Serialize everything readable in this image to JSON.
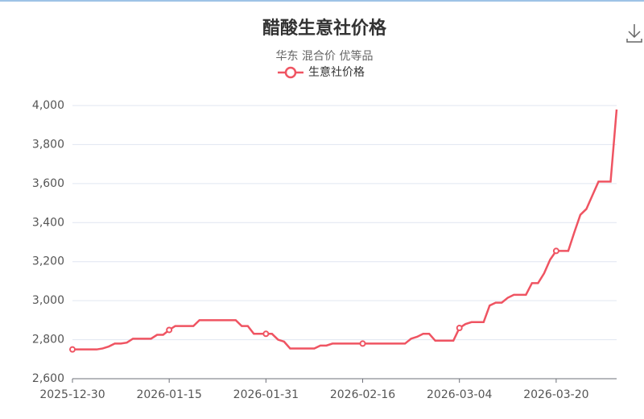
{
  "chart_data": {
    "type": "line",
    "title": "醋酸生意社价格",
    "subtitle": "华东 混合价 优等品",
    "categories": [
      "2025-12-30",
      null,
      null,
      null,
      null,
      null,
      null,
      null,
      null,
      null,
      null,
      null,
      null,
      null,
      null,
      null,
      "2026-01-15",
      null,
      null,
      null,
      null,
      null,
      null,
      null,
      null,
      null,
      null,
      null,
      null,
      null,
      null,
      null,
      "2026-01-31",
      null,
      null,
      null,
      null,
      null,
      null,
      null,
      null,
      null,
      null,
      null,
      null,
      null,
      null,
      null,
      "2026-02-16",
      null,
      null,
      null,
      null,
      null,
      null,
      null,
      null,
      null,
      null,
      null,
      null,
      null,
      null,
      null,
      "2026-03-04",
      null,
      null,
      null,
      null,
      null,
      null,
      null,
      null,
      null,
      null,
      null,
      null,
      null,
      null,
      null,
      "2026-03-20",
      null,
      null,
      null,
      null,
      null,
      null,
      null,
      null,
      null,
      null
    ],
    "series": [
      {
        "name": "生意社价格",
        "color": "#ef5462",
        "values": [
          2750,
          2750,
          2750,
          2750,
          2750,
          2755,
          2765,
          2780,
          2780,
          2785,
          2805,
          2805,
          2805,
          2805,
          2825,
          2825,
          2850,
          2870,
          2870,
          2870,
          2870,
          2900,
          2900,
          2900,
          2900,
          2900,
          2900,
          2900,
          2870,
          2870,
          2830,
          2830,
          2830,
          2830,
          2800,
          2790,
          2755,
          2755,
          2755,
          2755,
          2755,
          2770,
          2770,
          2780,
          2780,
          2780,
          2780,
          2780,
          2780,
          2780,
          2780,
          2780,
          2780,
          2780,
          2780,
          2780,
          2805,
          2815,
          2830,
          2830,
          2795,
          2795,
          2795,
          2795,
          2860,
          2880,
          2890,
          2890,
          2890,
          2975,
          2990,
          2990,
          3015,
          3030,
          3030,
          3030,
          3090,
          3090,
          3140,
          3210,
          3255,
          3255,
          3255,
          3350,
          3440,
          3470,
          3540,
          3610,
          3610,
          3610,
          3980
        ]
      }
    ],
    "ylim": [
      2600,
      4000
    ],
    "yticks": [
      {
        "value": 2600,
        "label": "2,600"
      },
      {
        "value": 2800,
        "label": "2,800"
      },
      {
        "value": 3000,
        "label": "3,000"
      },
      {
        "value": 3200,
        "label": "3,200"
      },
      {
        "value": 3400,
        "label": "3,400"
      },
      {
        "value": 3600,
        "label": "3,600"
      },
      {
        "value": 3800,
        "label": "3,800"
      },
      {
        "value": 4000,
        "label": "4,000"
      }
    ],
    "grid": true
  }
}
